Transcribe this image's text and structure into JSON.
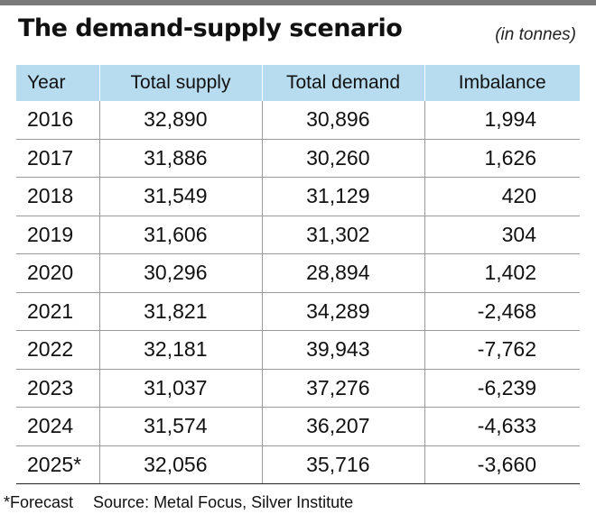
{
  "title": "The demand-supply scenario",
  "unit": "(in tonnes)",
  "footnote": "*Forecast",
  "source": "Source: Metal Focus, Silver Institute",
  "colors": {
    "header_bg": "#b8dcef",
    "top_bar": "#7a7a7a"
  },
  "chart_data": {
    "type": "table",
    "columns": [
      "Year",
      "Total supply",
      "Total demand",
      "Imbalance"
    ],
    "rows": [
      [
        "2016",
        "32,890",
        "30,896",
        "1,994"
      ],
      [
        "2017",
        "31,886",
        "30,260",
        "1,626"
      ],
      [
        "2018",
        "31,549",
        "31,129",
        "420"
      ],
      [
        "2019",
        "31,606",
        "31,302",
        "304"
      ],
      [
        "2020",
        "30,296",
        "28,894",
        "1,402"
      ],
      [
        "2021",
        "31,821",
        "34,289",
        "-2,468"
      ],
      [
        "2022",
        "32,181",
        "39,943",
        "-7,762"
      ],
      [
        "2023",
        "31,037",
        "37,276",
        "-6,239"
      ],
      [
        "2024",
        "31,574",
        "36,207",
        "-4,633"
      ],
      [
        "2025*",
        "32,056",
        "35,716",
        "-3,660"
      ]
    ]
  }
}
